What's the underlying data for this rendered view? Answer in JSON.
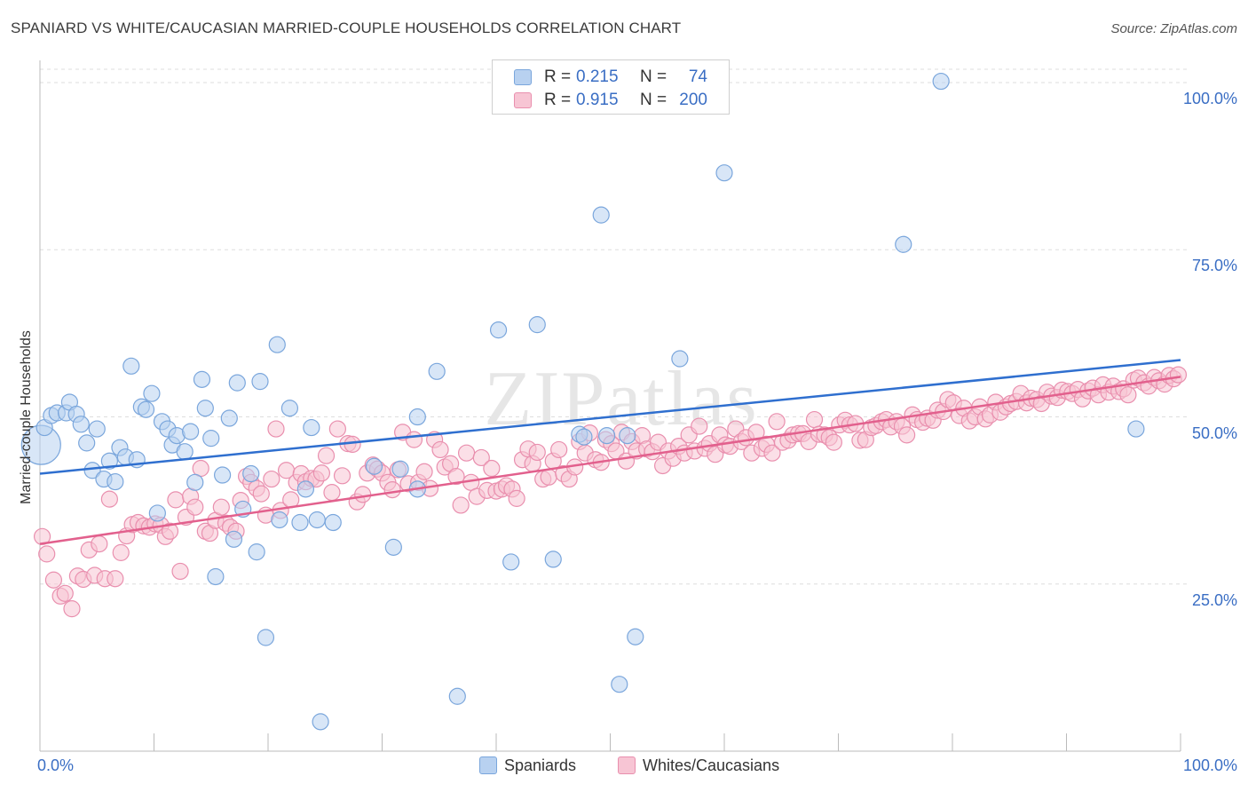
{
  "title": "SPANIARD VS WHITE/CAUCASIAN MARRIED-COUPLE HOUSEHOLDS CORRELATION CHART",
  "source": "Source: ZipAtlas.com",
  "watermark": "ZIPatlas",
  "colors": {
    "blue_fill": "#b8d1f0",
    "blue_stroke": "#7aa6dc",
    "blue_line": "#2f6fcf",
    "pink_fill": "#f7c5d4",
    "pink_stroke": "#e98fae",
    "pink_line": "#e2608d",
    "tick_text": "#3a6ec4",
    "grid": "#dddddd"
  },
  "legend": {
    "rows": [
      {
        "r_label": "R =",
        "r_value": "0.215",
        "n_label": "N =",
        "n_value": "74"
      },
      {
        "r_label": "R =",
        "r_value": "0.915",
        "n_label": "N =",
        "n_value": "200"
      }
    ]
  },
  "bottom_legend": {
    "spaniards": "Spaniards",
    "whites": "Whites/Caucasians"
  },
  "chart_data": {
    "type": "scatter",
    "xlabel": "",
    "ylabel": "Married-couple Households",
    "xlim": [
      0,
      100
    ],
    "ylim": [
      0,
      102
    ],
    "x_tick_labels": [
      "0.0%",
      "100.0%"
    ],
    "y_ticks": [
      {
        "value": 25,
        "label": "25.0%"
      },
      {
        "value": 50,
        "label": "50.0%"
      },
      {
        "value": 75,
        "label": "75.0%"
      },
      {
        "value": 100,
        "label": "100.0%"
      }
    ],
    "legend_position": "top-center",
    "series": [
      {
        "name": "Spaniards",
        "trend": {
          "x0": 0,
          "y0": 41.5,
          "x1": 100,
          "y1": 58.5
        },
        "points": [
          [
            0.1,
            45.8
          ],
          [
            0.4,
            48.4
          ],
          [
            1.0,
            50.2
          ],
          [
            1.5,
            50.6
          ],
          [
            2.3,
            50.6
          ],
          [
            2.6,
            52.2
          ],
          [
            3.2,
            50.4
          ],
          [
            3.6,
            48.9
          ],
          [
            4.1,
            46.1
          ],
          [
            4.6,
            42.0
          ],
          [
            5.0,
            48.2
          ],
          [
            5.6,
            40.7
          ],
          [
            6.1,
            43.4
          ],
          [
            6.6,
            40.3
          ],
          [
            7.0,
            45.4
          ],
          [
            7.5,
            44.0
          ],
          [
            8.0,
            57.6
          ],
          [
            8.5,
            43.6
          ],
          [
            8.9,
            51.5
          ],
          [
            9.3,
            51.1
          ],
          [
            9.8,
            53.5
          ],
          [
            10.3,
            35.6
          ],
          [
            10.7,
            49.3
          ],
          [
            11.2,
            48.2
          ],
          [
            11.6,
            45.8
          ],
          [
            12.0,
            47.2
          ],
          [
            12.7,
            44.8
          ],
          [
            13.2,
            47.8
          ],
          [
            13.6,
            40.2
          ],
          [
            14.2,
            55.6
          ],
          [
            14.5,
            51.3
          ],
          [
            15.0,
            46.8
          ],
          [
            15.4,
            26.1
          ],
          [
            16.0,
            41.3
          ],
          [
            16.6,
            49.8
          ],
          [
            17.0,
            31.7
          ],
          [
            17.3,
            55.1
          ],
          [
            17.8,
            36.2
          ],
          [
            18.5,
            41.5
          ],
          [
            19.0,
            29.8
          ],
          [
            19.3,
            55.3
          ],
          [
            19.8,
            17.0
          ],
          [
            20.8,
            60.8
          ],
          [
            21.0,
            34.6
          ],
          [
            21.9,
            51.3
          ],
          [
            22.8,
            34.2
          ],
          [
            23.3,
            39.2
          ],
          [
            23.8,
            48.4
          ],
          [
            24.3,
            34.6
          ],
          [
            24.6,
            4.4
          ],
          [
            25.7,
            34.2
          ],
          [
            29.3,
            42.6
          ],
          [
            31.0,
            30.5
          ],
          [
            31.6,
            42.2
          ],
          [
            33.1,
            50.0
          ],
          [
            33.1,
            39.2
          ],
          [
            34.8,
            56.8
          ],
          [
            36.6,
            8.2
          ],
          [
            40.2,
            63.0
          ],
          [
            41.3,
            28.3
          ],
          [
            43.6,
            63.8
          ],
          [
            45.0,
            28.7
          ],
          [
            47.3,
            47.4
          ],
          [
            47.7,
            47.0
          ],
          [
            49.2,
            80.2
          ],
          [
            49.7,
            47.2
          ],
          [
            50.8,
            10.0
          ],
          [
            51.5,
            47.2
          ],
          [
            52.2,
            17.1
          ],
          [
            56.1,
            58.7
          ],
          [
            60.0,
            86.5
          ],
          [
            75.7,
            75.8
          ],
          [
            79.0,
            100.2
          ],
          [
            96.1,
            48.2
          ]
        ]
      },
      {
        "name": "Whites/Caucasians",
        "trend": {
          "x0": 0,
          "y0": 31.0,
          "x1": 100,
          "y1": 56.0
        },
        "points": [
          [
            0.2,
            32.1
          ],
          [
            0.6,
            29.5
          ],
          [
            1.2,
            25.6
          ],
          [
            1.8,
            23.2
          ],
          [
            2.2,
            23.6
          ],
          [
            2.8,
            21.3
          ],
          [
            3.3,
            26.2
          ],
          [
            3.8,
            25.7
          ],
          [
            4.3,
            30.1
          ],
          [
            4.8,
            26.3
          ],
          [
            5.2,
            31.0
          ],
          [
            5.7,
            25.8
          ],
          [
            6.1,
            37.7
          ],
          [
            6.6,
            25.8
          ],
          [
            7.1,
            29.7
          ],
          [
            7.6,
            32.2
          ],
          [
            8.1,
            33.9
          ],
          [
            8.6,
            34.2
          ],
          [
            9.1,
            33.7
          ],
          [
            9.6,
            33.5
          ],
          [
            10.1,
            34.0
          ],
          [
            10.6,
            33.8
          ],
          [
            11.0,
            32.1
          ],
          [
            11.4,
            32.9
          ],
          [
            11.9,
            37.6
          ],
          [
            12.3,
            26.9
          ],
          [
            12.8,
            35.0
          ],
          [
            13.2,
            38.1
          ],
          [
            13.6,
            36.5
          ],
          [
            14.1,
            42.3
          ],
          [
            14.5,
            32.9
          ],
          [
            14.9,
            32.6
          ],
          [
            15.4,
            34.5
          ],
          [
            15.9,
            36.5
          ],
          [
            16.3,
            34.1
          ],
          [
            16.7,
            33.5
          ],
          [
            17.2,
            32.9
          ],
          [
            17.6,
            37.5
          ],
          [
            18.1,
            41.1
          ],
          [
            18.5,
            40.2
          ],
          [
            19.0,
            39.3
          ],
          [
            19.4,
            38.5
          ],
          [
            19.8,
            35.3
          ],
          [
            20.3,
            40.7
          ],
          [
            20.7,
            48.2
          ],
          [
            21.1,
            36.0
          ],
          [
            21.6,
            42.0
          ],
          [
            22.0,
            37.6
          ],
          [
            22.5,
            40.2
          ],
          [
            22.9,
            41.5
          ],
          [
            23.3,
            40.3
          ],
          [
            23.8,
            40.8
          ],
          [
            24.2,
            40.7
          ],
          [
            24.7,
            41.6
          ],
          [
            25.1,
            44.2
          ],
          [
            25.6,
            38.7
          ],
          [
            26.1,
            48.2
          ],
          [
            26.5,
            41.2
          ],
          [
            27.0,
            46.0
          ],
          [
            27.4,
            45.9
          ],
          [
            27.8,
            37.3
          ],
          [
            28.3,
            38.4
          ],
          [
            28.7,
            41.6
          ],
          [
            29.2,
            42.8
          ],
          [
            29.6,
            42.2
          ],
          [
            30.0,
            41.6
          ],
          [
            30.5,
            40.2
          ],
          [
            30.9,
            39.1
          ],
          [
            31.4,
            42.1
          ],
          [
            31.8,
            47.7
          ],
          [
            32.3,
            40.0
          ],
          [
            32.8,
            46.6
          ],
          [
            33.2,
            40.2
          ],
          [
            33.7,
            41.8
          ],
          [
            34.2,
            39.3
          ],
          [
            34.6,
            46.6
          ],
          [
            35.1,
            45.1
          ],
          [
            35.5,
            42.5
          ],
          [
            36.0,
            43.0
          ],
          [
            36.5,
            41.1
          ],
          [
            36.9,
            36.8
          ],
          [
            37.4,
            44.6
          ],
          [
            37.8,
            40.2
          ],
          [
            38.3,
            38.1
          ],
          [
            38.7,
            43.9
          ],
          [
            39.2,
            39.0
          ],
          [
            39.6,
            42.3
          ],
          [
            40.0,
            38.9
          ],
          [
            40.5,
            39.2
          ],
          [
            40.9,
            39.7
          ],
          [
            41.4,
            39.2
          ],
          [
            41.8,
            37.8
          ],
          [
            42.3,
            43.6
          ],
          [
            42.8,
            45.2
          ],
          [
            43.2,
            43.0
          ],
          [
            43.6,
            44.7
          ],
          [
            44.1,
            40.7
          ],
          [
            44.6,
            41.0
          ],
          [
            45.0,
            43.4
          ],
          [
            45.5,
            45.1
          ],
          [
            45.9,
            41.5
          ],
          [
            46.4,
            40.7
          ],
          [
            46.9,
            42.5
          ],
          [
            47.3,
            46.3
          ],
          [
            47.8,
            44.6
          ],
          [
            48.2,
            47.6
          ],
          [
            48.7,
            43.6
          ],
          [
            49.2,
            43.2
          ],
          [
            49.6,
            46.6
          ],
          [
            50.1,
            46.0
          ],
          [
            50.5,
            44.9
          ],
          [
            51.0,
            47.7
          ],
          [
            51.4,
            43.4
          ],
          [
            51.9,
            46.3
          ],
          [
            52.3,
            44.9
          ],
          [
            52.8,
            47.2
          ],
          [
            53.2,
            45.2
          ],
          [
            53.7,
            44.8
          ],
          [
            54.2,
            46.2
          ],
          [
            54.6,
            42.7
          ],
          [
            55.1,
            44.9
          ],
          [
            55.5,
            43.8
          ],
          [
            56.0,
            45.6
          ],
          [
            56.5,
            44.6
          ],
          [
            56.9,
            47.3
          ],
          [
            57.4,
            44.9
          ],
          [
            57.8,
            48.6
          ],
          [
            58.3,
            45.3
          ],
          [
            58.7,
            46.0
          ],
          [
            59.2,
            44.4
          ],
          [
            59.6,
            47.3
          ],
          [
            60.1,
            45.8
          ],
          [
            60.5,
            45.6
          ],
          [
            61.0,
            48.2
          ],
          [
            61.5,
            46.3
          ],
          [
            61.9,
            46.9
          ],
          [
            62.4,
            44.6
          ],
          [
            62.8,
            47.7
          ],
          [
            63.3,
            45.3
          ],
          [
            63.7,
            45.9
          ],
          [
            64.2,
            44.6
          ],
          [
            64.6,
            49.3
          ],
          [
            65.1,
            46.2
          ],
          [
            65.6,
            46.5
          ],
          [
            66.0,
            47.3
          ],
          [
            66.5,
            47.5
          ],
          [
            66.9,
            47.5
          ],
          [
            67.4,
            46.3
          ],
          [
            67.9,
            49.6
          ],
          [
            68.3,
            47.4
          ],
          [
            68.8,
            47.3
          ],
          [
            69.2,
            46.9
          ],
          [
            69.6,
            46.2
          ],
          [
            70.1,
            48.8
          ],
          [
            70.6,
            49.5
          ],
          [
            71.0,
            48.8
          ],
          [
            71.5,
            49.0
          ],
          [
            71.9,
            46.5
          ],
          [
            72.4,
            46.6
          ],
          [
            72.9,
            48.4
          ],
          [
            73.3,
            48.7
          ],
          [
            73.8,
            49.3
          ],
          [
            74.2,
            49.6
          ],
          [
            74.6,
            48.5
          ],
          [
            75.1,
            49.3
          ],
          [
            75.6,
            48.6
          ],
          [
            76.0,
            47.3
          ],
          [
            76.5,
            50.3
          ],
          [
            76.9,
            49.6
          ],
          [
            77.4,
            49.2
          ],
          [
            77.8,
            49.8
          ],
          [
            78.3,
            49.5
          ],
          [
            78.7,
            51.0
          ],
          [
            79.2,
            50.8
          ],
          [
            79.6,
            52.6
          ],
          [
            80.1,
            52.1
          ],
          [
            80.6,
            50.2
          ],
          [
            81.0,
            51.3
          ],
          [
            81.5,
            49.4
          ],
          [
            82.0,
            50.0
          ],
          [
            82.4,
            51.5
          ],
          [
            82.9,
            49.7
          ],
          [
            83.3,
            50.3
          ],
          [
            83.8,
            52.2
          ],
          [
            84.2,
            50.7
          ],
          [
            84.7,
            51.5
          ],
          [
            85.1,
            52.0
          ],
          [
            85.6,
            52.3
          ],
          [
            86.0,
            53.5
          ],
          [
            86.5,
            52.1
          ],
          [
            86.9,
            52.8
          ],
          [
            87.4,
            52.6
          ],
          [
            87.8,
            52.0
          ],
          [
            88.3,
            53.7
          ],
          [
            88.7,
            53.1
          ],
          [
            89.2,
            52.9
          ],
          [
            89.6,
            54.0
          ],
          [
            90.1,
            53.8
          ],
          [
            90.5,
            53.5
          ],
          [
            91.0,
            54.1
          ],
          [
            91.4,
            52.7
          ],
          [
            91.9,
            53.9
          ],
          [
            92.3,
            54.3
          ],
          [
            92.8,
            53.3
          ],
          [
            93.2,
            54.8
          ],
          [
            93.7,
            53.7
          ],
          [
            94.1,
            54.6
          ],
          [
            94.6,
            53.8
          ],
          [
            95.0,
            54.2
          ],
          [
            95.4,
            53.3
          ],
          [
            95.9,
            55.5
          ],
          [
            96.3,
            55.8
          ],
          [
            96.8,
            55.1
          ],
          [
            97.2,
            54.6
          ],
          [
            97.7,
            55.9
          ],
          [
            98.1,
            55.4
          ],
          [
            98.6,
            54.9
          ],
          [
            99.0,
            56.2
          ],
          [
            99.4,
            55.7
          ],
          [
            99.8,
            56.3
          ]
        ]
      }
    ]
  }
}
